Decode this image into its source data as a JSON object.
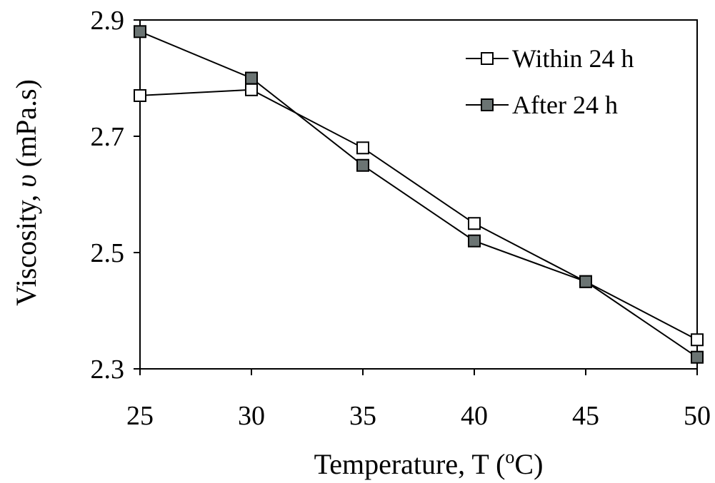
{
  "chart_data": {
    "type": "line",
    "xlabel": "Temperature, T (",
    "xlabel_sup": "o",
    "xlabel_end": "C)",
    "ylabel": "Viscosity, ",
    "ylabel_symbol": "υ",
    "ylabel_end": " (mPa.s)",
    "x": [
      25,
      30,
      35,
      40,
      45,
      50
    ],
    "xlim": [
      25,
      50
    ],
    "ylim": [
      2.3,
      2.9
    ],
    "x_ticks": [
      25,
      30,
      35,
      40,
      45,
      50
    ],
    "x_tick_labels": [
      "25",
      "30",
      "35",
      "40",
      "45",
      "50"
    ],
    "y_ticks": [
      2.3,
      2.5,
      2.7,
      2.9
    ],
    "y_tick_labels": [
      "2.3",
      "2.5",
      "2.7",
      "2.9"
    ],
    "grid": false,
    "legend_position": "top-right",
    "series": [
      {
        "name": "Within 24 h",
        "marker": "square-open",
        "color": "#000000",
        "fill": "#ffffff",
        "values": [
          2.77,
          2.78,
          2.68,
          2.55,
          2.45,
          2.35
        ]
      },
      {
        "name": "After 24 h",
        "marker": "square-filled",
        "color": "#000000",
        "fill": "#6b7473",
        "values": [
          2.88,
          2.8,
          2.65,
          2.52,
          2.45,
          2.32
        ]
      }
    ]
  }
}
